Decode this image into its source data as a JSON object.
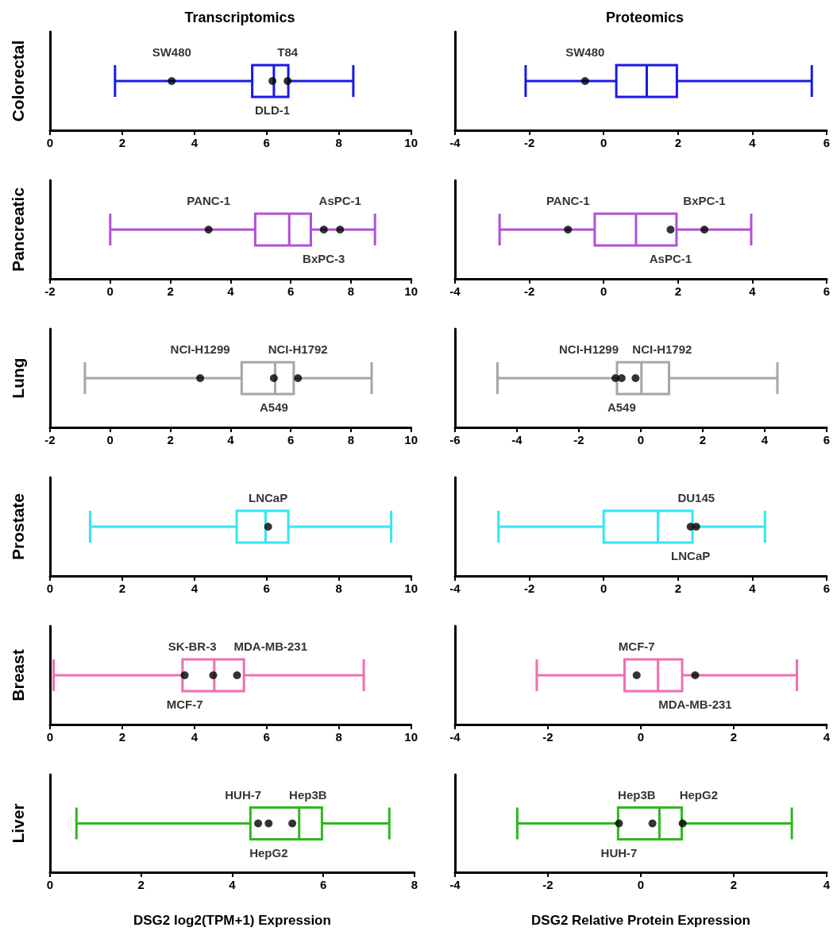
{
  "chart_data": [
    {
      "type": "box",
      "orientation": "horizontal",
      "title": "Transcriptomics",
      "ylabel": "Colorectal",
      "categories": [
        null
      ],
      "xlim": [
        0,
        10
      ],
      "xticks": [
        0,
        2,
        4,
        6,
        8,
        10
      ],
      "series": [
        {
          "type": "box",
          "color": "#1a1ae6",
          "boxes": [
            {
              "low": 1.8,
              "q1": 5.6,
              "median": 6.2,
              "q3": 6.6,
              "high": 8.4
            }
          ]
        },
        {
          "type": "scatter",
          "color": "#000000",
          "x": [
            null,
            null,
            null
          ],
          "values": [
            3.37,
            6.16,
            6.58
          ],
          "value_labels": [
            "SW480",
            "DLD-1",
            "T84"
          ]
        }
      ]
    },
    {
      "type": "box",
      "orientation": "horizontal",
      "title": "Proteomics",
      "categories": [
        null
      ],
      "xlim": [
        -4,
        6
      ],
      "xticks": [
        -4,
        -2,
        0,
        2,
        4,
        6
      ],
      "series": [
        {
          "type": "box",
          "color": "#1a1ae6",
          "boxes": [
            {
              "low": -2.1,
              "q1": 0.34,
              "median": 1.16,
              "q3": 1.97,
              "high": 5.6
            }
          ]
        },
        {
          "type": "scatter",
          "color": "#000000",
          "x": [
            null
          ],
          "values": [
            -0.5
          ],
          "value_labels": [
            "SW480"
          ]
        }
      ]
    },
    {
      "type": "box",
      "orientation": "horizontal",
      "ylabel": "Pancreatic",
      "categories": [
        null
      ],
      "xlim": [
        -2,
        10
      ],
      "xticks": [
        -2,
        0,
        2,
        4,
        6,
        8,
        10
      ],
      "series": [
        {
          "type": "box",
          "color": "#b050d8",
          "boxes": [
            {
              "low": 0,
              "q1": 4.82,
              "median": 5.95,
              "q3": 6.67,
              "high": 8.8
            }
          ]
        },
        {
          "type": "scatter",
          "color": "#000000",
          "x": [
            null,
            null,
            null
          ],
          "values": [
            3.27,
            7.1,
            7.64
          ],
          "value_labels": [
            "PANC-1",
            "BxPC-3",
            "AsPC-1"
          ]
        }
      ]
    },
    {
      "type": "box",
      "orientation": "horizontal",
      "categories": [
        null
      ],
      "xlim": [
        -4,
        6
      ],
      "xticks": [
        -4,
        -2,
        0,
        2,
        4,
        6
      ],
      "series": [
        {
          "type": "box",
          "color": "#b050d8",
          "boxes": [
            {
              "low": -2.8,
              "q1": -0.24,
              "median": 0.87,
              "q3": 1.96,
              "high": 3.97
            }
          ]
        },
        {
          "type": "scatter",
          "color": "#000000",
          "x": [
            null,
            null,
            null
          ],
          "values": [
            -0.96,
            1.8,
            2.71
          ],
          "value_labels": [
            "PANC-1",
            "AsPC-1",
            "BxPC-1"
          ]
        }
      ]
    },
    {
      "type": "box",
      "orientation": "horizontal",
      "ylabel": "Lung",
      "categories": [
        null
      ],
      "xlim": [
        -2,
        10
      ],
      "xticks": [
        -2,
        0,
        2,
        4,
        6,
        8,
        10
      ],
      "series": [
        {
          "type": "box",
          "color": "#a6a6a6",
          "boxes": [
            {
              "low": -0.84,
              "q1": 4.37,
              "median": 5.48,
              "q3": 6.1,
              "high": 8.69
            }
          ]
        },
        {
          "type": "scatter",
          "color": "#000000",
          "x": [
            null,
            null,
            null
          ],
          "values": [
            2.99,
            5.44,
            6.24
          ],
          "value_labels": [
            "NCI-H1299",
            "A549",
            "NCI-H1792"
          ]
        }
      ]
    },
    {
      "type": "box",
      "orientation": "horizontal",
      "categories": [
        null
      ],
      "xlim": [
        -6,
        6
      ],
      "xticks": [
        -6,
        -4,
        -2,
        0,
        2,
        4,
        6
      ],
      "series": [
        {
          "type": "box",
          "color": "#a6a6a6",
          "boxes": [
            {
              "low": -4.63,
              "q1": -0.77,
              "median": 0.02,
              "q3": 0.91,
              "high": 4.41
            }
          ]
        },
        {
          "type": "scatter",
          "color": "#000000",
          "x": [
            null,
            null,
            null
          ],
          "values": [
            -0.82,
            -0.62,
            -0.17
          ],
          "value_labels": [
            "NCI-H1299",
            "A549",
            "NCI-H1792"
          ]
        }
      ]
    },
    {
      "type": "box",
      "orientation": "horizontal",
      "ylabel": "Prostate",
      "categories": [
        null
      ],
      "xlim": [
        0,
        10
      ],
      "xticks": [
        0,
        2,
        4,
        6,
        8,
        10
      ],
      "series": [
        {
          "type": "box",
          "color": "#33e6f2",
          "boxes": [
            {
              "low": 1.11,
              "q1": 5.17,
              "median": 5.97,
              "q3": 6.6,
              "high": 9.45
            }
          ]
        },
        {
          "type": "scatter",
          "color": "#000000",
          "x": [
            null
          ],
          "values": [
            6.04
          ],
          "value_labels": [
            "LNCaP"
          ]
        }
      ]
    },
    {
      "type": "box",
      "orientation": "horizontal",
      "categories": [
        null
      ],
      "xlim": [
        -4,
        6
      ],
      "xticks": [
        -4,
        -2,
        0,
        2,
        4,
        6
      ],
      "series": [
        {
          "type": "box",
          "color": "#33e6f2",
          "boxes": [
            {
              "low": -2.83,
              "q1": 0,
              "median": 1.46,
              "q3": 2.39,
              "high": 4.34
            }
          ]
        },
        {
          "type": "scatter",
          "color": "#000000",
          "x": [
            null,
            null
          ],
          "values": [
            2.49,
            2.34
          ],
          "value_labels": [
            "DU145",
            "LNCaP"
          ]
        }
      ]
    },
    {
      "type": "box",
      "orientation": "horizontal",
      "ylabel": "Breast",
      "categories": [
        null
      ],
      "xlim": [
        0,
        10
      ],
      "xticks": [
        0,
        2,
        4,
        6,
        8,
        10
      ],
      "series": [
        {
          "type": "box",
          "color": "#f06eb0",
          "boxes": [
            {
              "low": 0.1,
              "q1": 3.67,
              "median": 4.55,
              "q3": 5.37,
              "high": 8.69
            }
          ]
        },
        {
          "type": "scatter",
          "color": "#000000",
          "x": [
            null,
            null,
            null
          ],
          "values": [
            4.52,
            3.73,
            5.18
          ],
          "value_labels": [
            "SK-BR-3",
            "MCF-7",
            "MDA-MB-231"
          ]
        }
      ]
    },
    {
      "type": "box",
      "orientation": "horizontal",
      "categories": [
        null
      ],
      "xlim": [
        -4,
        4
      ],
      "xticks": [
        -4,
        -2,
        0,
        2,
        4
      ],
      "series": [
        {
          "type": "box",
          "color": "#f06eb0",
          "boxes": [
            {
              "low": -2.24,
              "q1": -0.35,
              "median": 0.37,
              "q3": 0.89,
              "high": 3.36
            }
          ]
        },
        {
          "type": "scatter",
          "color": "#000000",
          "x": [
            null,
            null
          ],
          "values": [
            -0.09,
            1.17
          ],
          "value_labels": [
            "MCF-7",
            "MDA-MB-231"
          ]
        }
      ]
    },
    {
      "type": "box",
      "orientation": "horizontal",
      "ylabel": "Liver",
      "xlabel": "DSG2 log2(TPM+1) Expression",
      "categories": [
        null
      ],
      "xlim": [
        0,
        8
      ],
      "xticks": [
        0,
        2,
        4,
        6,
        8
      ],
      "series": [
        {
          "type": "box",
          "color": "#2fb81f",
          "boxes": [
            {
              "low": 0.58,
              "q1": 4.4,
              "median": 5.47,
              "q3": 5.97,
              "high": 7.45
            }
          ]
        },
        {
          "type": "scatter",
          "color": "#000000",
          "x": [
            null,
            null,
            null
          ],
          "values": [
            4.57,
            4.8,
            5.32
          ],
          "value_labels": [
            "HUH-7",
            "HepG2",
            "Hep3B"
          ]
        }
      ]
    },
    {
      "type": "box",
      "orientation": "horizontal",
      "xlabel": "DSG2 Relative Protein Expression",
      "categories": [
        null
      ],
      "xlim": [
        -4,
        4
      ],
      "xticks": [
        -4,
        -2,
        0,
        2,
        4
      ],
      "series": [
        {
          "type": "box",
          "color": "#2fb81f",
          "boxes": [
            {
              "low": -2.66,
              "q1": -0.49,
              "median": 0.4,
              "q3": 0.88,
              "high": 3.25
            }
          ]
        },
        {
          "type": "scatter",
          "color": "#000000",
          "x": [
            null,
            null,
            null
          ],
          "values": [
            0.25,
            -0.47,
            0.9
          ],
          "value_labels": [
            "Hep3B",
            "HUH-7",
            "HepG2"
          ]
        }
      ]
    }
  ]
}
